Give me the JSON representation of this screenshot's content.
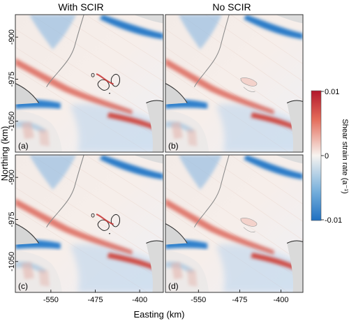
{
  "chart_data": {
    "type": "heatmap",
    "column_titles": [
      "With SCIR",
      "No SCIR"
    ],
    "panels": [
      {
        "label": "(a)",
        "variant": "with_scir"
      },
      {
        "label": "(b)",
        "variant": "no_scir"
      },
      {
        "label": "(c)",
        "variant": "with_scir"
      },
      {
        "label": "(d)",
        "variant": "no_scir"
      }
    ],
    "xlabel": "Easting (km)",
    "ylabel": "Northing (km)",
    "xticks": [
      -550,
      -475,
      -400
    ],
    "yticks": [
      -900,
      -975,
      -1050
    ],
    "xlim": [
      -610,
      -360
    ],
    "ylim": [
      -1105,
      -860
    ],
    "colorbar": {
      "label": "Shear strain rate (a⁻¹)",
      "min": -0.01,
      "max": 0.01,
      "ticks": [
        "0.01",
        "0",
        "-0.01"
      ],
      "colors": {
        "high": "#c0272d",
        "mid": "#f7f4f0",
        "low": "#1f78c8"
      }
    },
    "grid": false
  }
}
